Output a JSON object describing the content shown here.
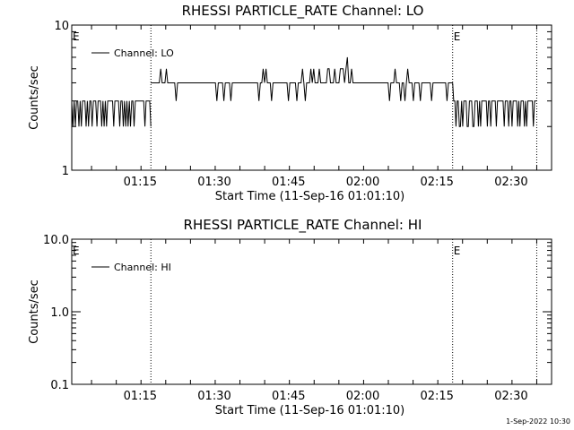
{
  "timestamp": "1-Sep-2022 10:30",
  "chart_data": [
    {
      "type": "line",
      "title": "RHESSI PARTICLE_RATE Channel: LO",
      "xlabel": "Start Time (11-Sep-16 01:01:10)",
      "ylabel": "Counts/sec",
      "yscale": "log",
      "ylim": [
        1,
        10
      ],
      "ytick_labels": [
        "1",
        "10"
      ],
      "xlim_minutes": [
        0,
        97
      ],
      "xtick_labels": [
        "01:15",
        "01:30",
        "01:45",
        "02:00",
        "02:15",
        "02:30"
      ],
      "legend": {
        "position": "top-left",
        "label": "Channel: LO"
      },
      "event_marker_label": "E",
      "event_markers": [
        {
          "time": "01:01:10",
          "labeled": true
        },
        {
          "time": "01:17:10",
          "labeled": false
        },
        {
          "time": "02:18:10",
          "labeled": true
        },
        {
          "time": "02:35:10",
          "labeled": false
        }
      ],
      "series": [
        {
          "name": "Channel: LO",
          "segments": [
            {
              "t_start": "01:01:10",
              "t_end": "01:17:10",
              "values": [
                3,
                2,
                3,
                2,
                3,
                3,
                2,
                3,
                2,
                3,
                3,
                3,
                2,
                3,
                2,
                3,
                3,
                2,
                3,
                3,
                3,
                2,
                3,
                3,
                3,
                2,
                3,
                2,
                3,
                2,
                3,
                3,
                3,
                3,
                3,
                2,
                3,
                3,
                3,
                3,
                2,
                3,
                3,
                2,
                3,
                2,
                3,
                2,
                3,
                2,
                3,
                3,
                2,
                3,
                3,
                3,
                3,
                3,
                3,
                3,
                3,
                2,
                3,
                3,
                3,
                3,
                2
              ]
            },
            {
              "t_start": "01:17:10",
              "t_end": "02:18:10",
              "values": [
                4,
                4,
                4,
                4,
                4,
                4,
                4,
                5,
                4,
                4,
                4,
                5,
                4,
                4,
                4,
                4,
                4,
                4,
                3,
                4,
                4,
                4,
                4,
                4,
                4,
                4,
                4,
                4,
                4,
                4,
                4,
                4,
                4,
                4,
                4,
                4,
                4,
                4,
                4,
                4,
                4,
                4,
                4,
                4,
                4,
                4,
                4,
                3,
                4,
                4,
                4,
                4,
                3,
                4,
                4,
                4,
                4,
                3,
                4,
                4,
                4,
                4,
                4,
                4,
                4,
                4,
                4,
                4,
                4,
                4,
                4,
                4,
                4,
                4,
                4,
                4,
                4,
                3,
                4,
                4,
                5,
                4,
                5,
                4,
                4,
                4,
                3,
                4,
                4,
                4,
                4,
                4,
                4,
                4,
                4,
                4,
                4,
                4,
                3,
                4,
                4,
                4,
                4,
                4,
                3,
                4,
                4,
                4,
                5,
                4,
                3,
                4,
                4,
                4,
                5,
                4,
                5,
                4,
                4,
                4,
                5,
                4,
                4,
                4,
                4,
                4,
                5,
                5,
                4,
                4,
                4,
                5,
                4,
                4,
                4,
                5,
                5,
                5,
                4,
                5,
                6,
                4,
                4,
                5,
                4,
                4,
                4,
                4,
                4,
                4,
                4,
                4,
                4,
                4,
                4,
                4,
                4,
                4,
                4,
                4,
                4,
                4,
                4,
                4,
                4,
                4,
                4,
                4,
                4,
                4,
                3,
                4,
                4,
                4,
                5,
                4,
                4,
                4,
                3,
                4,
                4,
                3,
                4,
                5,
                4,
                4,
                4,
                3,
                4,
                4,
                4,
                4,
                3,
                4,
                4,
                4,
                4,
                4,
                4,
                4,
                3,
                4,
                4,
                4,
                4,
                4,
                4,
                4,
                4,
                4,
                4,
                3,
                4,
                4,
                4,
                4
              ]
            },
            {
              "t_start": "02:18:10",
              "t_end": "02:35:10",
              "values": [
                4,
                3,
                3,
                2,
                3,
                3,
                2,
                2,
                3,
                2,
                3,
                3,
                3,
                2,
                2,
                3,
                3,
                3,
                2,
                2,
                3,
                3,
                3,
                2,
                3,
                2,
                3,
                3,
                3,
                3,
                3,
                2,
                3,
                3,
                2,
                3,
                3,
                3,
                3,
                2,
                3,
                3,
                3,
                3,
                3,
                3,
                2,
                3,
                3,
                3,
                2,
                3,
                3,
                2,
                3,
                3,
                3,
                3,
                2,
                3,
                2,
                3,
                3,
                3,
                2,
                3,
                2,
                3,
                3,
                3,
                3,
                3,
                2,
                3,
                3,
                3
              ]
            }
          ]
        }
      ]
    },
    {
      "type": "line",
      "title": "RHESSI PARTICLE_RATE Channel: HI",
      "xlabel": "Start Time (11-Sep-16 01:01:10)",
      "ylabel": "Counts/sec",
      "yscale": "log",
      "ylim": [
        0.1,
        10
      ],
      "ytick_labels": [
        "0.1",
        "1.0",
        "10.0"
      ],
      "xlim_minutes": [
        0,
        97
      ],
      "xtick_labels": [
        "01:15",
        "01:30",
        "01:45",
        "02:00",
        "02:15",
        "02:30"
      ],
      "legend": {
        "position": "top-left",
        "label": "Channel: HI"
      },
      "event_marker_label": "E",
      "event_markers": [
        {
          "time": "01:01:10",
          "labeled": true
        },
        {
          "time": "01:17:10",
          "labeled": false
        },
        {
          "time": "02:18:10",
          "labeled": true
        },
        {
          "time": "02:35:10",
          "labeled": false
        }
      ],
      "series": [
        {
          "name": "Channel: HI",
          "segments": []
        }
      ]
    }
  ]
}
